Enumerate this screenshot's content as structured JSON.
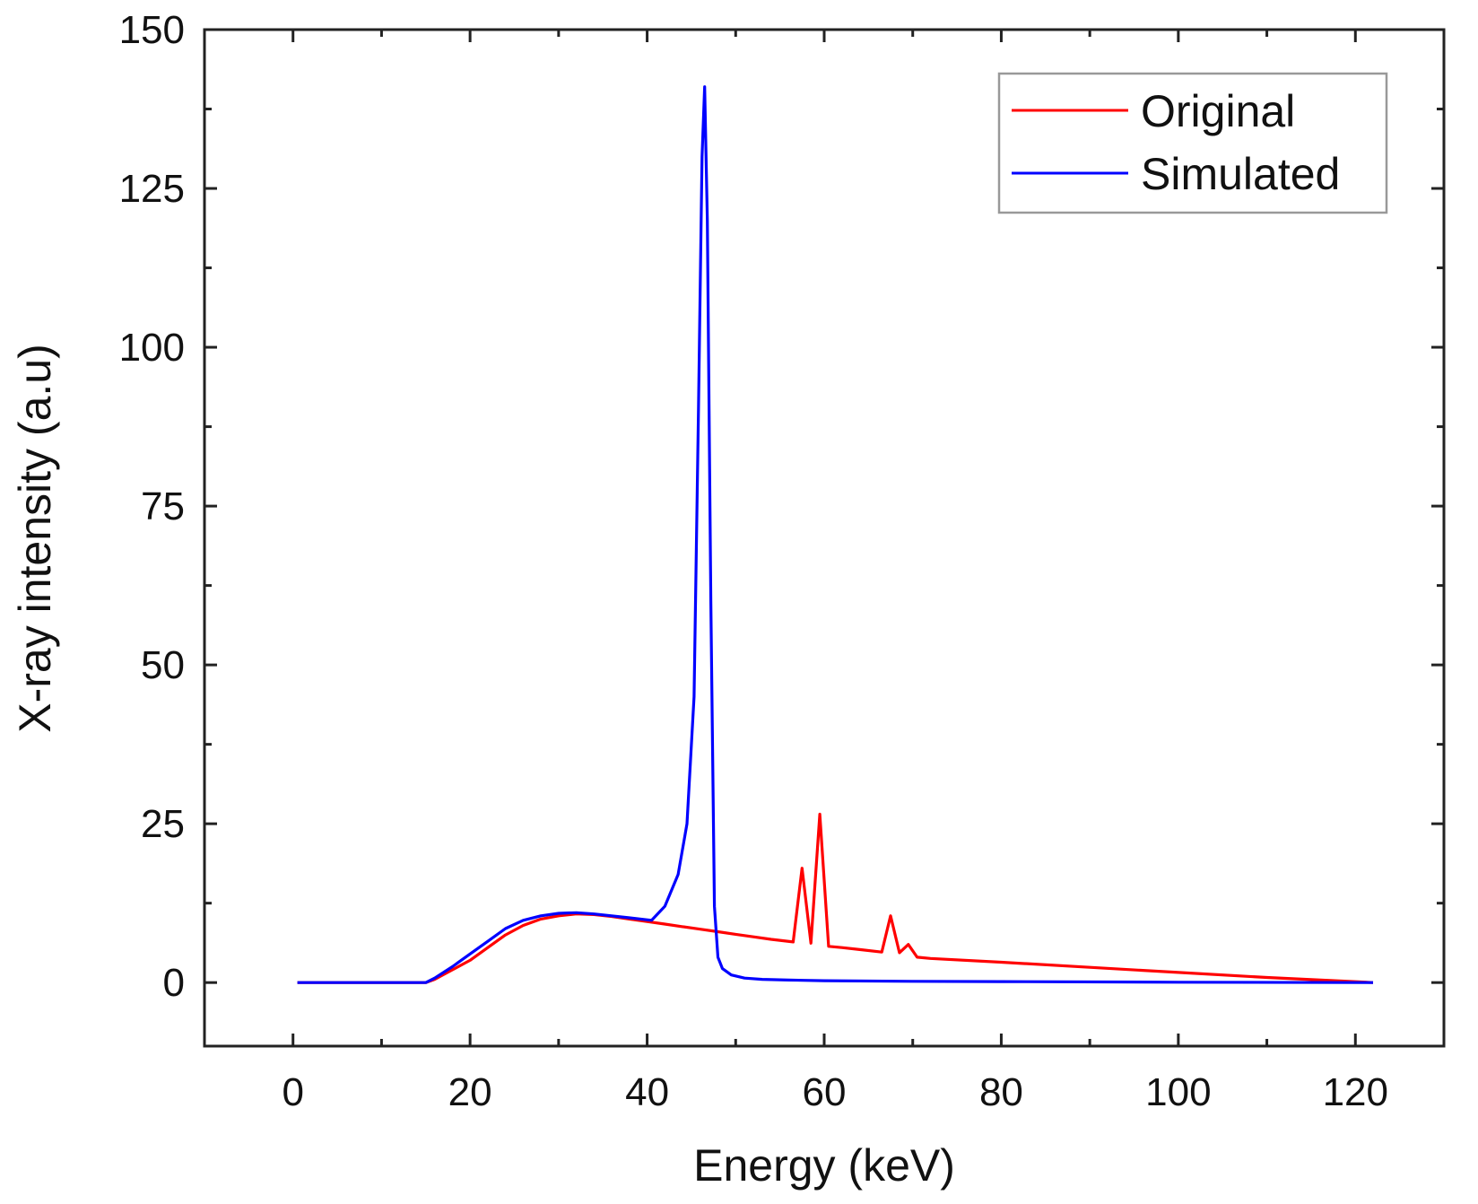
{
  "chart_data": {
    "type": "line",
    "title": "",
    "xlabel": "Energy (keV)",
    "ylabel": "X-ray intensity (a.u)",
    "xlim": [
      -10,
      130
    ],
    "ylim": [
      -10,
      150
    ],
    "xticks": [
      0,
      20,
      40,
      60,
      80,
      100,
      120
    ],
    "yticks": [
      0,
      25,
      50,
      75,
      100,
      125,
      150
    ],
    "grid": false,
    "legend_position": "top-right",
    "series": [
      {
        "name": "Original",
        "color": "#ff0000",
        "x": [
          0.5,
          15,
          16,
          18,
          20,
          22,
          24,
          26,
          28,
          30,
          32,
          34,
          36,
          38,
          40,
          42,
          44,
          46,
          48,
          50,
          52,
          54,
          56.5,
          57.5,
          58.5,
          59.5,
          60.5,
          62,
          64,
          66.5,
          67.5,
          68.5,
          69.5,
          70.5,
          72,
          80,
          90,
          100,
          110,
          122
        ],
        "y": [
          0,
          0,
          0.5,
          2,
          3.5,
          5.5,
          7.5,
          9,
          10,
          10.5,
          10.8,
          10.7,
          10.4,
          10,
          9.6,
          9.2,
          8.8,
          8.4,
          8,
          7.6,
          7.2,
          6.8,
          6.4,
          18,
          6.2,
          26.5,
          5.7,
          5.5,
          5.2,
          4.8,
          10.5,
          4.7,
          6,
          4,
          3.8,
          3.2,
          2.4,
          1.6,
          0.8,
          0
        ]
      },
      {
        "name": "Simulated",
        "color": "#0000ff",
        "x": [
          0.5,
          15,
          16,
          18,
          20,
          22,
          24,
          26,
          28,
          30,
          32,
          34,
          36,
          38,
          40.5,
          42,
          43.5,
          44.5,
          45.3,
          45.8,
          46.2,
          46.5,
          46.8,
          47.2,
          47.6,
          48,
          48.5,
          49.5,
          51,
          53,
          56,
          60,
          70,
          80,
          100,
          122
        ],
        "y": [
          0,
          0,
          0.7,
          2.5,
          4.5,
          6.5,
          8.5,
          9.8,
          10.5,
          10.9,
          11,
          10.8,
          10.5,
          10.2,
          9.8,
          12,
          17,
          25,
          45,
          90,
          130,
          141,
          120,
          60,
          12,
          4,
          2.2,
          1.2,
          0.7,
          0.5,
          0.4,
          0.3,
          0.2,
          0.15,
          0.05,
          0
        ]
      }
    ]
  }
}
